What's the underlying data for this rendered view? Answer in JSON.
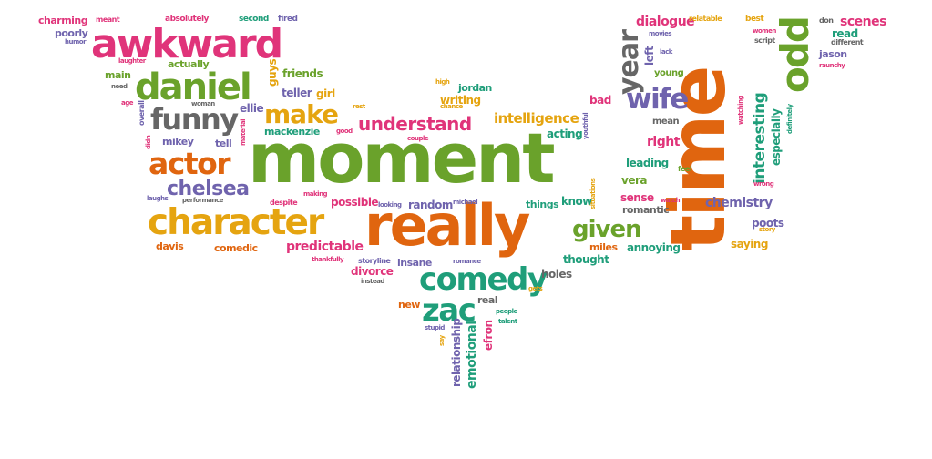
{
  "palette": {
    "green": "#6aa22b",
    "orange": "#e0650f",
    "magenta": "#e0347a",
    "yellow": "#e5a410",
    "teal": "#1f9e7a",
    "purple": "#6f63ad",
    "gray": "#666666"
  },
  "words": [
    {
      "text": "moment",
      "color": "green"
    },
    {
      "text": "time",
      "color": "orange"
    },
    {
      "text": "really",
      "color": "orange"
    },
    {
      "text": "awkward",
      "color": "magenta"
    },
    {
      "text": "character",
      "color": "yellow"
    },
    {
      "text": "daniel",
      "color": "green"
    },
    {
      "text": "odd",
      "color": "green"
    },
    {
      "text": "comedy",
      "color": "teal"
    },
    {
      "text": "actor",
      "color": "orange"
    },
    {
      "text": "funny",
      "color": "gray"
    },
    {
      "text": "zac",
      "color": "teal"
    },
    {
      "text": "wife",
      "color": "purple"
    },
    {
      "text": "make",
      "color": "yellow"
    },
    {
      "text": "year",
      "color": "gray"
    },
    {
      "text": "given",
      "color": "green"
    },
    {
      "text": "understand",
      "color": "magenta"
    },
    {
      "text": "chelsea",
      "color": "purple"
    },
    {
      "text": "interesting",
      "color": "teal"
    },
    {
      "text": "intelligence",
      "color": "yellow"
    },
    {
      "text": "chemistry",
      "color": "purple"
    },
    {
      "text": "predictable",
      "color": "magenta"
    },
    {
      "text": "dialogue",
      "color": "magenta"
    },
    {
      "text": "scenes",
      "color": "magenta"
    },
    {
      "text": "right",
      "color": "magenta"
    },
    {
      "text": "especially",
      "color": "teal"
    },
    {
      "text": "annoying",
      "color": "teal"
    },
    {
      "text": "saying",
      "color": "yellow"
    },
    {
      "text": "leading",
      "color": "teal"
    },
    {
      "text": "vera",
      "color": "green"
    },
    {
      "text": "sense",
      "color": "magenta"
    },
    {
      "text": "acting",
      "color": "teal"
    },
    {
      "text": "writing",
      "color": "yellow"
    },
    {
      "text": "friends",
      "color": "green"
    },
    {
      "text": "teller",
      "color": "purple"
    },
    {
      "text": "guys",
      "color": "yellow"
    },
    {
      "text": "ellie",
      "color": "purple"
    },
    {
      "text": "girl",
      "color": "yellow"
    },
    {
      "text": "jordan",
      "color": "teal"
    },
    {
      "text": "bad",
      "color": "magenta"
    },
    {
      "text": "mean",
      "color": "gray"
    },
    {
      "text": "young",
      "color": "green"
    },
    {
      "text": "left",
      "color": "purple"
    },
    {
      "text": "relationship",
      "color": "purple"
    },
    {
      "text": "emotional",
      "color": "teal"
    },
    {
      "text": "efron",
      "color": "magenta"
    },
    {
      "text": "thought",
      "color": "teal"
    },
    {
      "text": "miles",
      "color": "orange"
    },
    {
      "text": "holes",
      "color": "gray"
    },
    {
      "text": "divorce",
      "color": "magenta"
    },
    {
      "text": "insane",
      "color": "purple"
    },
    {
      "text": "new",
      "color": "orange"
    },
    {
      "text": "real",
      "color": "gray"
    },
    {
      "text": "possible",
      "color": "magenta"
    },
    {
      "text": "random",
      "color": "purple"
    },
    {
      "text": "things",
      "color": "teal"
    },
    {
      "text": "know",
      "color": "teal"
    },
    {
      "text": "romantic",
      "color": "gray"
    },
    {
      "text": "poots",
      "color": "purple"
    },
    {
      "text": "davis",
      "color": "orange"
    },
    {
      "text": "comedic",
      "color": "orange"
    },
    {
      "text": "mackenzie",
      "color": "teal"
    },
    {
      "text": "tell",
      "color": "purple"
    },
    {
      "text": "mikey",
      "color": "purple"
    },
    {
      "text": "actually",
      "color": "green"
    },
    {
      "text": "main",
      "color": "green"
    },
    {
      "text": "charming",
      "color": "magenta"
    },
    {
      "text": "poorly",
      "color": "purple"
    },
    {
      "text": "meant",
      "color": "magenta"
    },
    {
      "text": "absolutely",
      "color": "magenta"
    },
    {
      "text": "second",
      "color": "teal"
    },
    {
      "text": "fired",
      "color": "purple"
    },
    {
      "text": "humor",
      "color": "purple"
    },
    {
      "text": "laughter",
      "color": "magenta"
    },
    {
      "text": "need",
      "color": "gray"
    },
    {
      "text": "age",
      "color": "magenta"
    },
    {
      "text": "overall",
      "color": "purple"
    },
    {
      "text": "didn",
      "color": "magenta"
    },
    {
      "text": "laughs",
      "color": "purple"
    },
    {
      "text": "performance",
      "color": "gray"
    },
    {
      "text": "woman",
      "color": "gray"
    },
    {
      "text": "material",
      "color": "magenta"
    },
    {
      "text": "despite",
      "color": "magenta"
    },
    {
      "text": "making",
      "color": "magenta"
    },
    {
      "text": "good",
      "color": "magenta"
    },
    {
      "text": "looking",
      "color": "purple"
    },
    {
      "text": "michael",
      "color": "purple"
    },
    {
      "text": "rest",
      "color": "yellow"
    },
    {
      "text": "couple",
      "color": "magenta"
    },
    {
      "text": "chance",
      "color": "yellow"
    },
    {
      "text": "high",
      "color": "yellow"
    },
    {
      "text": "thankfully",
      "color": "magenta"
    },
    {
      "text": "storyline",
      "color": "purple"
    },
    {
      "text": "romance",
      "color": "purple"
    },
    {
      "text": "instead",
      "color": "gray"
    },
    {
      "text": "gets",
      "color": "yellow"
    },
    {
      "text": "people",
      "color": "teal"
    },
    {
      "text": "talent",
      "color": "teal"
    },
    {
      "text": "stupid",
      "color": "purple"
    },
    {
      "text": "say",
      "color": "yellow"
    },
    {
      "text": "youthful",
      "color": "purple"
    },
    {
      "text": "situations",
      "color": "yellow"
    },
    {
      "text": "feel",
      "color": "green"
    },
    {
      "text": "watch",
      "color": "magenta"
    },
    {
      "text": "story",
      "color": "yellow"
    },
    {
      "text": "wrong",
      "color": "magenta"
    },
    {
      "text": "definitely",
      "color": "teal"
    },
    {
      "text": "watching",
      "color": "magenta"
    },
    {
      "text": "jason",
      "color": "purple"
    },
    {
      "text": "raunchy",
      "color": "magenta"
    },
    {
      "text": "read",
      "color": "teal"
    },
    {
      "text": "different",
      "color": "gray"
    },
    {
      "text": "script",
      "color": "gray"
    },
    {
      "text": "women",
      "color": "magenta"
    },
    {
      "text": "movies",
      "color": "purple"
    },
    {
      "text": "lack",
      "color": "purple"
    },
    {
      "text": "relatable",
      "color": "yellow"
    },
    {
      "text": "best",
      "color": "yellow"
    },
    {
      "text": "don",
      "color": "gray"
    }
  ]
}
